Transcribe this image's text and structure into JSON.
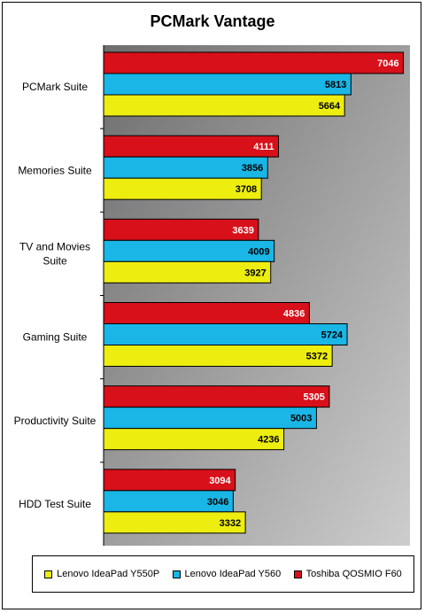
{
  "chart_data": {
    "type": "bar",
    "orientation": "horizontal",
    "title": "PCMark Vantage",
    "categories": [
      "PCMark Suite",
      "Memories Suite",
      "TV and Movies Suite",
      "Gaming Suite",
      "Productivity Suite",
      "HDD Test Suite"
    ],
    "category_lines": [
      [
        "PCMark Suite"
      ],
      [
        "Memories Suite"
      ],
      [
        "TV and Movies",
        "Suite"
      ],
      [
        "Gaming Suite"
      ],
      [
        "Productivity Suite"
      ],
      [
        "HDD Test Suite"
      ]
    ],
    "series": [
      {
        "name": "Toshiba QOSMIO F60",
        "color": "#d7101a",
        "label_color": "#ffffff",
        "values": [
          7046,
          4111,
          3639,
          4836,
          5305,
          3094
        ]
      },
      {
        "name": "Lenovo IdeaPad Y560",
        "color": "#19b6e6",
        "label_color": "#000000",
        "values": [
          5813,
          3856,
          4009,
          5724,
          5003,
          3046
        ]
      },
      {
        "name": "Lenovo IdeaPad Y550P",
        "color": "#eded10",
        "label_color": "#000000",
        "values": [
          5664,
          3708,
          3927,
          5372,
          4236,
          3332
        ]
      }
    ],
    "legend_order": [
      "Lenovo IdeaPad Y550P",
      "Lenovo IdeaPad Y560",
      "Toshiba QOSMIO F60"
    ],
    "xlim": [
      0,
      7200
    ],
    "legend": "bottom",
    "grid": false
  }
}
